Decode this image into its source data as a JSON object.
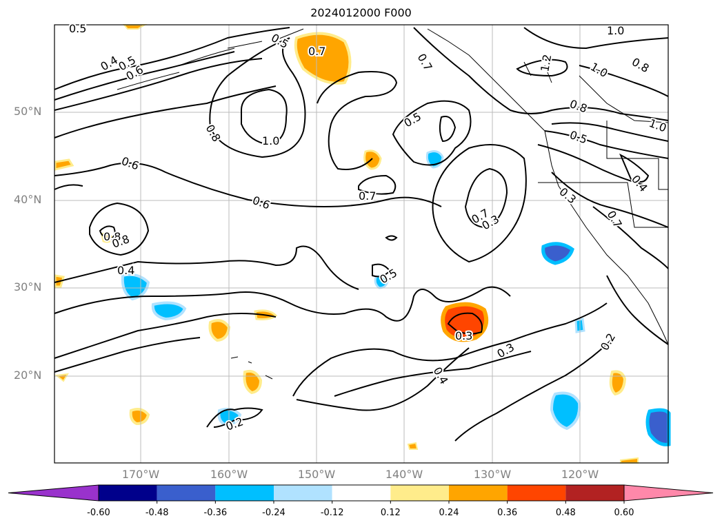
{
  "title": "2024012000 F000",
  "lat_labels": [
    "50°N",
    "40°N",
    "30°N",
    "20°N"
  ],
  "lon_labels": [
    "170°W",
    "160°W",
    "150°W",
    "140°W",
    "130°W",
    "120°W"
  ],
  "contour_labels": [
    "0.5",
    "0.5",
    "0.4",
    "0.5",
    "0.6",
    "0.7",
    "0.7",
    "1.0",
    "1.2",
    "1.0",
    "0.8",
    "0.8",
    "1.0",
    "0.5",
    "0.5",
    "0.8",
    "1.0",
    "0.6",
    "0.6",
    "0.7",
    "0.8",
    "0.8",
    "0.7",
    "0.3",
    "0.3",
    "0.4",
    "0.7",
    "0.4",
    "0.5",
    "0.3",
    "0.3",
    "0.4",
    "0.2",
    "0.2"
  ],
  "colorbar": {
    "ticks": [
      "-0.60",
      "-0.48",
      "-0.36",
      "-0.24",
      "-0.12",
      "0.12",
      "0.24",
      "0.36",
      "0.48",
      "0.60"
    ],
    "colors": [
      "#9932cc",
      "#00008b",
      "#3a5fcd",
      "#00bfff",
      "#b0e2ff",
      "#ffffff",
      "#ffec8b",
      "#ffa500",
      "#ff4500",
      "#b22222",
      "#ff88aa"
    ]
  }
}
